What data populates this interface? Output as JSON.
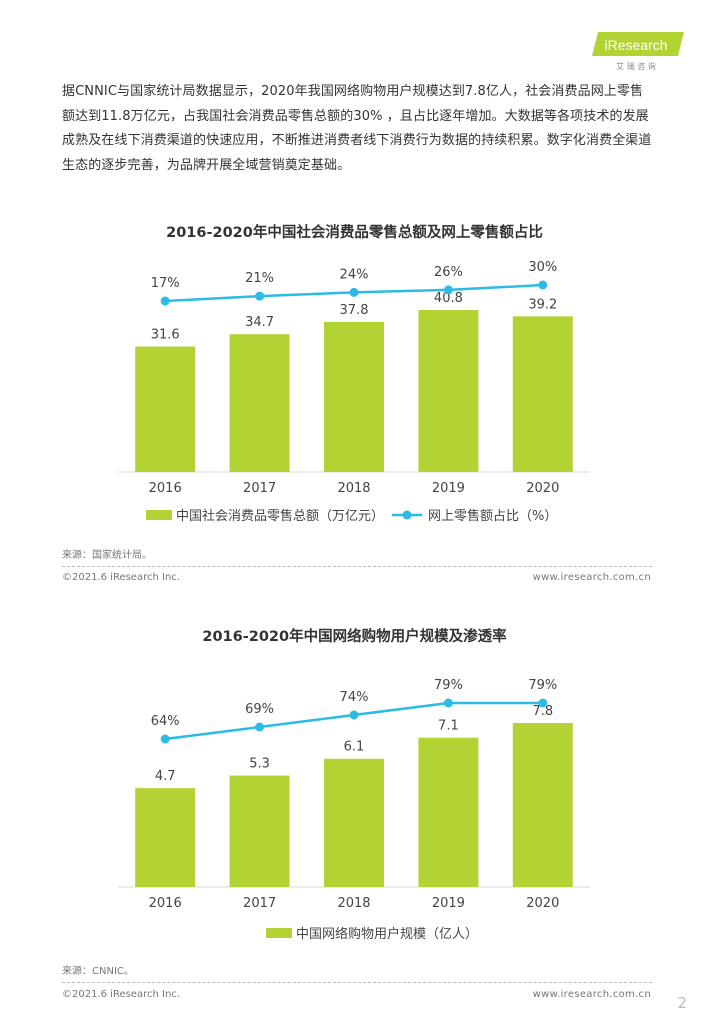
{
  "brand": {
    "logo_text": "iResearch",
    "logo_subtext": "艾 瑞 咨 询",
    "color": "#b3d233"
  },
  "intro_text": "据CNNIC与国家统计局数据显示，2020年我国网络购物用户规模达到7.8亿人，社会消费品网上零售额达到11.8万亿元，占我国社会消费品零售总额的30% ，且占比逐年增加。大数据等各项技术的发展成熟及在线下消费渠道的快速应用，不断推进消费者线下消费行为数据的持续积累。数字化消费全渠道生态的逐步完善，为品牌开展全域营销奠定基础。",
  "chart1": {
    "title": "2016-2020年中国社会消费品零售总额及网上零售额占比",
    "source": "来源：国家统计局。"
  },
  "chart2": {
    "title": "2016-2020年中国网络购物用户规模及渗透率",
    "source": "来源：CNNIC。"
  },
  "footer": {
    "copyright": "©2021.6 iResearch Inc.",
    "website": "www.iresearch.com.cn",
    "page_number": "2"
  },
  "chart_data": [
    {
      "type": "bar",
      "categories": [
        "2016",
        "2017",
        "2018",
        "2019",
        "2020"
      ],
      "series": [
        {
          "name": "中国社会消费品零售总额（万亿元）",
          "type": "bar",
          "values": [
            31.6,
            34.7,
            37.8,
            40.8,
            39.2
          ],
          "labels": [
            "31.6",
            "34.7",
            "37.8",
            "40.8",
            "39.2"
          ],
          "color": "#b3d233"
        },
        {
          "name": "网上零售额占比（%）",
          "type": "line",
          "values": [
            17,
            21,
            24,
            26,
            30
          ],
          "labels": [
            "17%",
            "21%",
            "24%",
            "26%",
            "30%"
          ],
          "color": "#2bbbe6"
        }
      ],
      "legend": "bottom"
    },
    {
      "type": "bar",
      "categories": [
        "2016",
        "2017",
        "2018",
        "2019",
        "2020"
      ],
      "series": [
        {
          "name": "中国网络购物用户规模（亿人）",
          "type": "bar",
          "values": [
            4.7,
            5.3,
            6.1,
            7.1,
            7.8
          ],
          "labels": [
            "4.7",
            "5.3",
            "6.1",
            "7.1",
            "7.8"
          ],
          "color": "#b3d233"
        },
        {
          "name": "",
          "type": "line",
          "values": [
            64,
            69,
            74,
            79,
            79
          ],
          "labels": [
            "64%",
            "69%",
            "74%",
            "79%",
            "79%"
          ],
          "color": "#2bbbe6"
        }
      ],
      "legend": "bottom"
    }
  ]
}
